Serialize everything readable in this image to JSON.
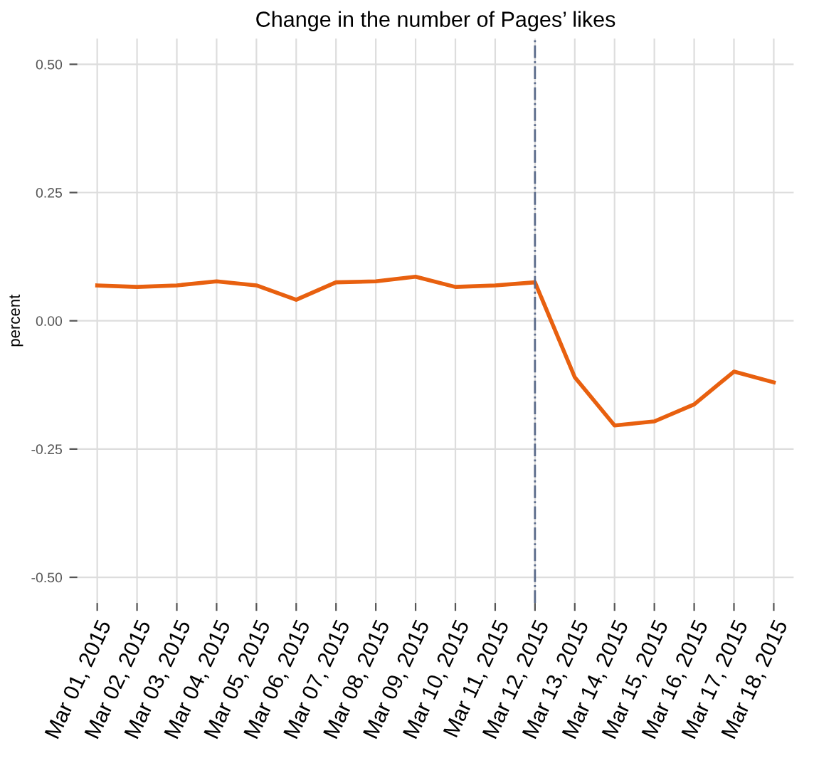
{
  "chart_data": {
    "type": "line",
    "title": "Change in the number of Pages’ likes",
    "ylabel": "percent",
    "categories": [
      "Mar 01, 2015",
      "Mar 02, 2015",
      "Mar 03, 2015",
      "Mar 04, 2015",
      "Mar 05, 2015",
      "Mar 06, 2015",
      "Mar 07, 2015",
      "Mar 08, 2015",
      "Mar 09, 2015",
      "Mar 10, 2015",
      "Mar 11, 2015",
      "Mar 12, 2015",
      "Mar 13, 2015",
      "Mar 14, 2015",
      "Mar 15, 2015",
      "Mar 16, 2015",
      "Mar 17, 2015",
      "Mar 18, 2015"
    ],
    "series": [
      {
        "color": "#e8600f",
        "values": [
          0.069,
          0.066,
          0.069,
          0.077,
          0.069,
          0.041,
          0.075,
          0.077,
          0.086,
          0.066,
          0.069,
          0.075,
          -0.11,
          -0.204,
          -0.196,
          -0.163,
          -0.099,
          -0.12
        ]
      }
    ],
    "ylim": [
      -0.55,
      0.55
    ],
    "yticks": [
      {
        "value": 0.5,
        "label": "0.50"
      },
      {
        "value": 0.25,
        "label": "0.25"
      },
      {
        "value": 0.0,
        "label": "0.00"
      },
      {
        "value": -0.25,
        "label": "-0.25"
      },
      {
        "value": -0.5,
        "label": "-0.50"
      }
    ],
    "ref_lines": [
      {
        "axis": "x",
        "value": "Mar 12, 2015",
        "color": "#5a6a8a",
        "line_style": "dashdot"
      }
    ],
    "grid": true,
    "marker": "none",
    "line_style": "solid"
  }
}
